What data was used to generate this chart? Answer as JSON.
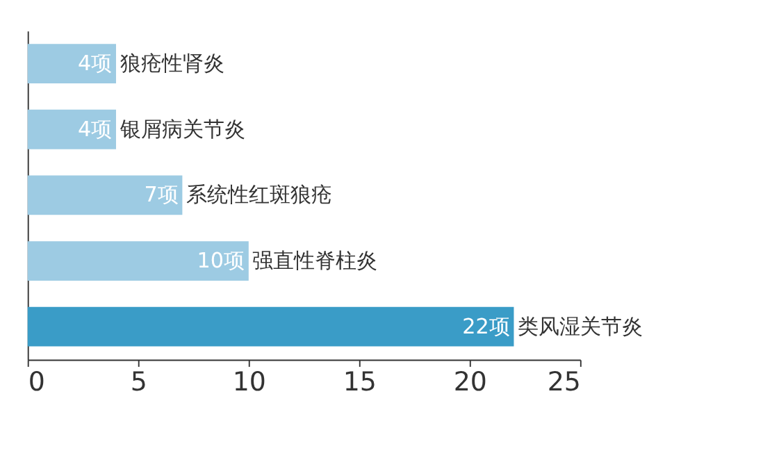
{
  "chart_data": {
    "type": "bar",
    "orientation": "horizontal",
    "categories": [
      "狼疮性肾炎",
      "银屑病关节炎",
      "系统性红斑狼疮",
      "强直性脊柱炎",
      "类风湿关节炎"
    ],
    "values": [
      4,
      4,
      7,
      10,
      22
    ],
    "value_labels": [
      "4项",
      "4项",
      "7项",
      "10项",
      "22项"
    ],
    "colors": [
      "#9dcbe3",
      "#9dcbe3",
      "#9dcbe3",
      "#9dcbe3",
      "#3a9cc7"
    ],
    "xlim": [
      0,
      25
    ],
    "xticks": [
      0,
      5,
      10,
      15,
      20,
      25
    ],
    "tick_labels": "x"
  }
}
